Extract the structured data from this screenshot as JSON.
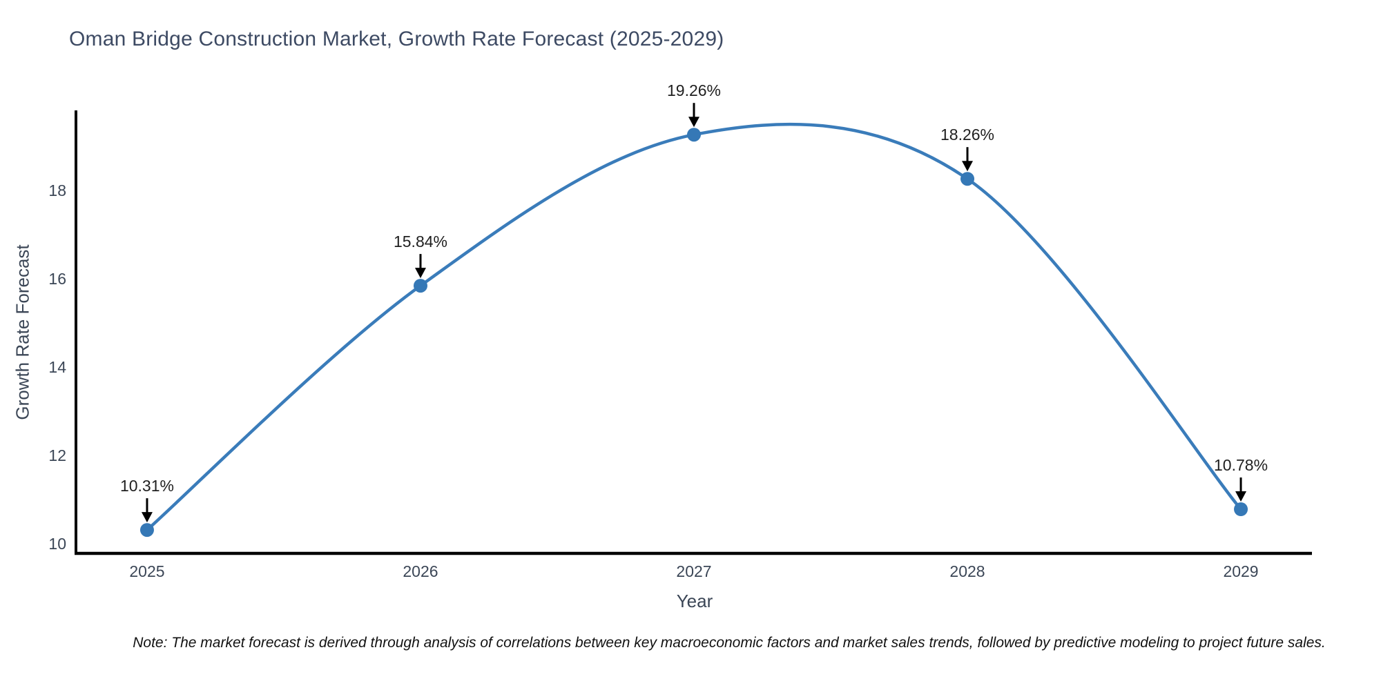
{
  "figure": {
    "note": "Note: The market forecast is derived through analysis of correlations between key macroeconomic factors and market sales trends, followed by predictive modeling to project future sales."
  },
  "chart_data": {
    "type": "line",
    "line_shape": "spline",
    "title": "Oman Bridge Construction Market, Growth Rate Forecast (2025-2029)",
    "xlabel": "Year",
    "ylabel": "Growth Rate Forecast",
    "x": [
      2025,
      2026,
      2027,
      2028,
      2029
    ],
    "values": [
      10.31,
      15.84,
      19.26,
      18.26,
      10.78
    ],
    "point_labels": [
      "10.31%",
      "15.84%",
      "19.26%",
      "18.26%",
      "10.78%"
    ],
    "xticks": [
      "2025",
      "2026",
      "2027",
      "2028",
      "2029"
    ],
    "yticks": [
      10,
      12,
      14,
      16,
      18
    ],
    "xlim": [
      2024.74,
      2029.26
    ],
    "ylim": [
      9.78,
      19.81
    ],
    "grid": false,
    "legend": "none",
    "markers": true,
    "annotation_arrows": true,
    "colors": {
      "line": "#3a7cba",
      "marker": "#3578b6",
      "axis": "#000000",
      "tick_label": "#3b4656",
      "title": "#3d4a63",
      "annotation": "#1f1f1f",
      "note": "#111111",
      "background": "#ffffff"
    }
  }
}
